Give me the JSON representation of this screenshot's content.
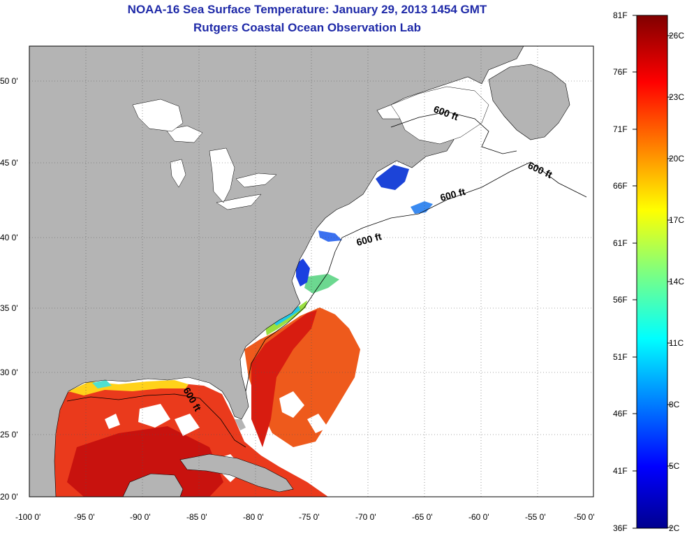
{
  "title": {
    "line1": "NOAA-16 Sea Surface Temperature:  January 29, 2013 1454 GMT",
    "line2": "Rutgers Coastal Ocean Observation Lab"
  },
  "map": {
    "lon_range": [
      -100,
      -50
    ],
    "lat_range": [
      20,
      52.5
    ],
    "x_ticks": [
      "-100 0'",
      "-95 0'",
      "-90 0'",
      "-85 0'",
      "-80 0'",
      "-75 0'",
      "-70 0'",
      "-65 0'",
      "-60 0'",
      "-55 0'",
      "-50 0'"
    ],
    "y_ticks": [
      "20 0'",
      "25 0'",
      "30 0'",
      "35 0'",
      "40 0'",
      "45 0'",
      "50 0'"
    ],
    "contour_labels": [
      "600 ft",
      "600 ft",
      "600 ft",
      "600 ft",
      "600 ft"
    ],
    "land_color": "#b4b4b4",
    "no_data_color": "#ffffff"
  },
  "colorbar": {
    "fahrenheit": [
      "81F",
      "76F",
      "71F",
      "66F",
      "61F",
      "56F",
      "51F",
      "46F",
      "41F",
      "36F"
    ],
    "celsius": [
      "26C",
      "23C",
      "20C",
      "17C",
      "14C",
      "11C",
      "8C",
      "5C",
      "2C"
    ],
    "colormap": "jet"
  }
}
